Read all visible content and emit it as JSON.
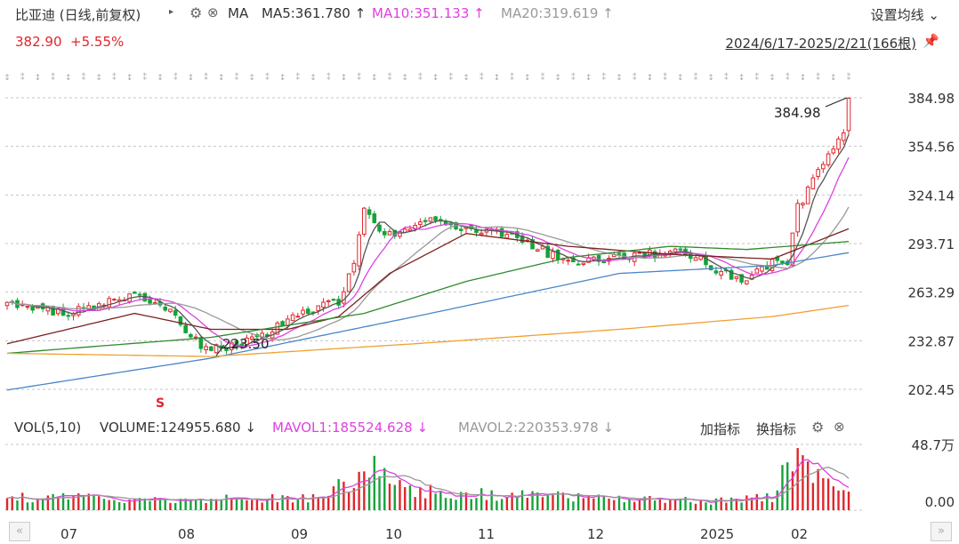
{
  "header": {
    "title": "比亚迪 (日线,前复权)",
    "ma_label": "MA",
    "ma5": "MA5:361.780",
    "ma10": "MA10:351.133",
    "ma20": "MA20:319.619",
    "settings": "设置均线",
    "price": "382.90",
    "change": "+5.55%",
    "range": "2024/6/17-2025/2/21(166根)"
  },
  "volume_header": {
    "label": "VOL(5,10)",
    "volume": "VOLUME:124955.680",
    "mavol1": "MAVOL1:185524.628",
    "mavol2": "MAVOL2:220353.978",
    "add_indicator": "加指标",
    "change_indicator": "换指标"
  },
  "colors": {
    "up": "#e0262c",
    "down": "#14a33a",
    "ma5": "#555555",
    "ma10": "#e040e0",
    "ma20": "#999999",
    "ma30": "#7b1f1f",
    "ma60": "#2e8b2e",
    "ma120": "#4a86c8",
    "ma250": "#f0a030"
  },
  "chart_data": {
    "type": "candlestick",
    "y_ticks": [
      "384.98",
      "354.56",
      "324.14",
      "293.71",
      "263.29",
      "232.87",
      "202.45"
    ],
    "x_ticks": [
      "07",
      "08",
      "09",
      "10",
      "11",
      "12",
      "2025",
      "02"
    ],
    "annotations": [
      {
        "label": "384.98",
        "type": "high"
      },
      {
        "label": "223.50",
        "type": "low"
      }
    ],
    "signal": "S",
    "volume_ticks": [
      "48.7万",
      "0.00"
    ],
    "ylim": [
      202.45,
      384.98
    ],
    "bar_count": 166,
    "price_keyframes": [
      [
        0,
        256
      ],
      [
        12,
        250
      ],
      [
        25,
        262
      ],
      [
        32,
        250
      ],
      [
        38,
        230
      ],
      [
        42,
        228
      ],
      [
        50,
        236
      ],
      [
        58,
        250
      ],
      [
        65,
        258
      ],
      [
        68,
        280
      ],
      [
        70,
        318
      ],
      [
        72,
        305
      ],
      [
        76,
        298
      ],
      [
        82,
        308
      ],
      [
        90,
        303
      ],
      [
        98,
        300
      ],
      [
        106,
        288
      ],
      [
        112,
        282
      ],
      [
        120,
        285
      ],
      [
        128,
        288
      ],
      [
        134,
        287
      ],
      [
        140,
        276
      ],
      [
        144,
        270
      ],
      [
        150,
        282
      ],
      [
        153,
        280
      ],
      [
        155,
        316
      ],
      [
        160,
        345
      ],
      [
        164,
        362
      ],
      [
        165,
        383
      ]
    ],
    "volume_keyframes": [
      [
        0,
        0.2
      ],
      [
        20,
        0.18
      ],
      [
        40,
        0.17
      ],
      [
        60,
        0.2
      ],
      [
        68,
        0.45
      ],
      [
        72,
        0.65
      ],
      [
        76,
        0.4
      ],
      [
        82,
        0.3
      ],
      [
        90,
        0.25
      ],
      [
        100,
        0.22
      ],
      [
        110,
        0.2
      ],
      [
        120,
        0.18
      ],
      [
        130,
        0.15
      ],
      [
        140,
        0.14
      ],
      [
        150,
        0.2
      ],
      [
        154,
        0.9
      ],
      [
        158,
        0.6
      ],
      [
        163,
        0.4
      ],
      [
        165,
        0.3
      ]
    ],
    "ma_keyframes": {
      "ma30": [
        [
          0,
          231
        ],
        [
          25,
          250
        ],
        [
          40,
          240
        ],
        [
          55,
          240
        ],
        [
          65,
          248
        ],
        [
          75,
          275
        ],
        [
          90,
          300
        ],
        [
          110,
          292
        ],
        [
          130,
          287
        ],
        [
          150,
          284
        ],
        [
          165,
          303
        ]
      ],
      "ma60": [
        [
          0,
          225
        ],
        [
          40,
          235
        ],
        [
          70,
          250
        ],
        [
          90,
          270
        ],
        [
          110,
          285
        ],
        [
          130,
          292
        ],
        [
          145,
          290
        ],
        [
          165,
          295
        ]
      ],
      "ma120": [
        [
          0,
          202
        ],
        [
          40,
          222
        ],
        [
          80,
          248
        ],
        [
          120,
          275
        ],
        [
          150,
          280
        ],
        [
          165,
          288
        ]
      ],
      "ma250": [
        [
          0,
          225
        ],
        [
          40,
          223
        ],
        [
          80,
          231
        ],
        [
          120,
          240
        ],
        [
          150,
          248
        ],
        [
          165,
          255
        ]
      ]
    }
  }
}
